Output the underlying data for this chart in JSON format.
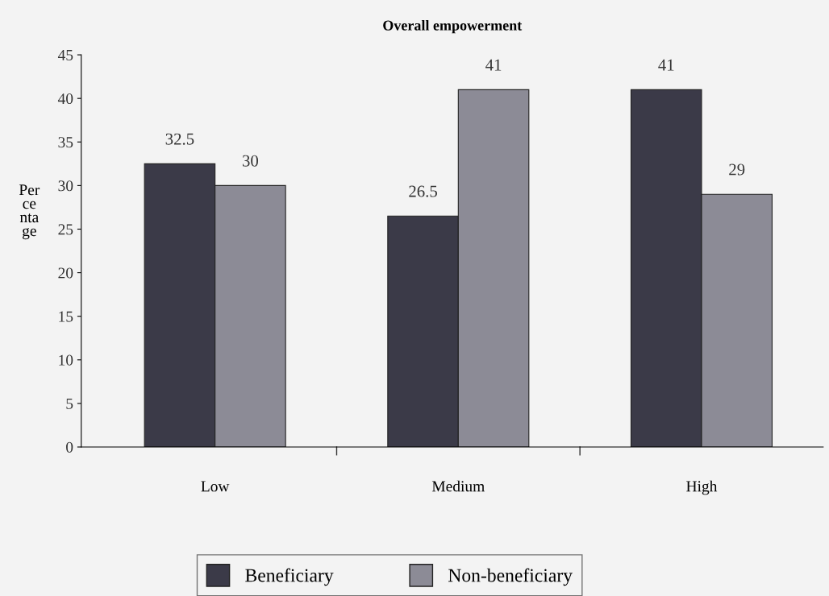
{
  "chart_data": {
    "type": "bar",
    "title": "Overall empowerment",
    "ylabel": "Per\nce\nnta\nge",
    "categories": [
      "Low",
      "Medium",
      "High"
    ],
    "series": [
      {
        "name": "Beneficiary",
        "color": "#3b3a48",
        "values": [
          32.5,
          26.5,
          41
        ]
      },
      {
        "name": "Non-beneficiary",
        "color": "#8c8b96",
        "values": [
          30,
          41,
          29
        ]
      }
    ],
    "ylim": [
      0,
      45
    ],
    "yticks": [
      0,
      5,
      10,
      15,
      20,
      25,
      30,
      35,
      40,
      45
    ],
    "data_labels": true,
    "grid": false,
    "legend": "bottom"
  }
}
